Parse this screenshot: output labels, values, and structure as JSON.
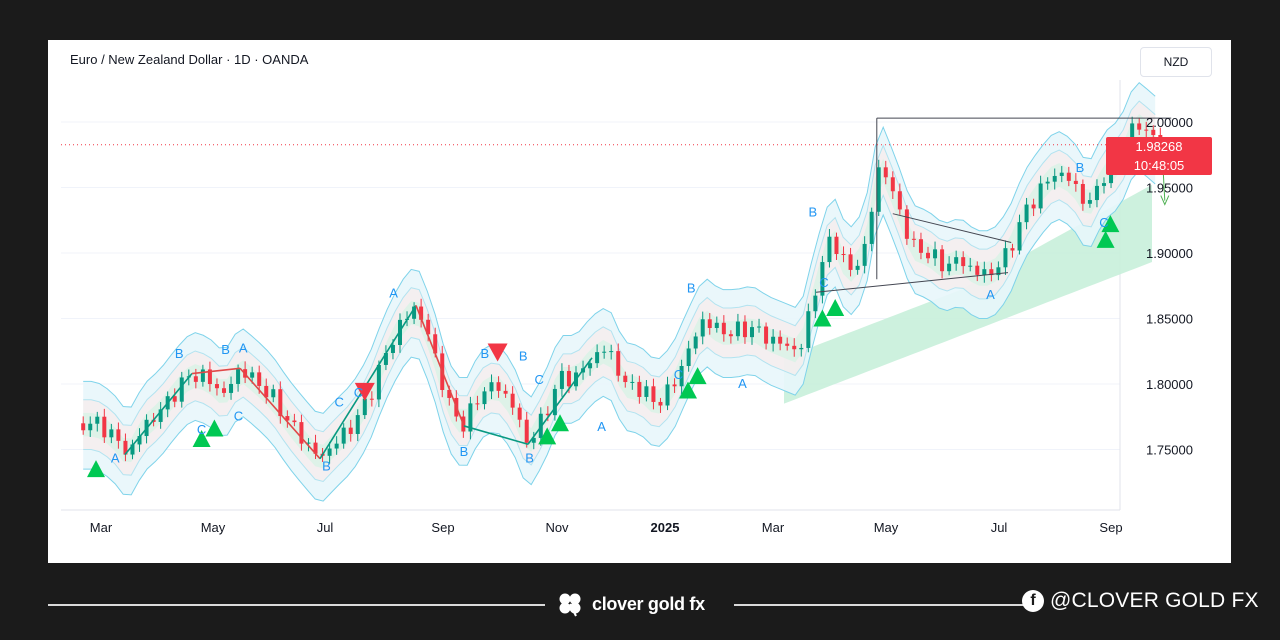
{
  "chart_data": {
    "type": "candlestick",
    "title": "Euro / New Zealand Dollar · 1D · OANDA",
    "currency": "NZD",
    "current_price": "1.98268",
    "countdown": "10:48:05",
    "y_ticks": [
      "2.00000",
      "1.95000",
      "1.90000",
      "1.85000",
      "1.80000",
      "1.75000"
    ],
    "x_ticks": [
      "Mar",
      "May",
      "Jul",
      "Sep",
      "Nov",
      "2025",
      "Mar",
      "May",
      "Jul",
      "Sep"
    ],
    "ylim": [
      1.715,
      2.02
    ],
    "close_series": [
      {
        "t": 0,
        "v": 1.77
      },
      {
        "t": 0.5,
        "v": 1.762
      },
      {
        "t": 1,
        "v": 1.746
      },
      {
        "t": 1.5,
        "v": 1.768
      },
      {
        "t": 2,
        "v": 1.779
      },
      {
        "t": 2.5,
        "v": 1.795
      },
      {
        "t": 3,
        "v": 1.808
      },
      {
        "t": 3.5,
        "v": 1.804
      },
      {
        "t": 4,
        "v": 1.792
      },
      {
        "t": 4.5,
        "v": 1.812
      },
      {
        "t": 5,
        "v": 1.802
      },
      {
        "t": 5.5,
        "v": 1.79
      },
      {
        "t": 6,
        "v": 1.772
      },
      {
        "t": 6.5,
        "v": 1.757
      },
      {
        "t": 7,
        "v": 1.743
      },
      {
        "t": 7.5,
        "v": 1.756
      },
      {
        "t": 8,
        "v": 1.768
      },
      {
        "t": 8.5,
        "v": 1.788
      },
      {
        "t": 9,
        "v": 1.82
      },
      {
        "t": 9.5,
        "v": 1.845
      },
      {
        "t": 10,
        "v": 1.86
      },
      {
        "t": 10.5,
        "v": 1.83
      },
      {
        "t": 11,
        "v": 1.785
      },
      {
        "t": 11.5,
        "v": 1.768
      },
      {
        "t": 12,
        "v": 1.793
      },
      {
        "t": 12.5,
        "v": 1.8
      },
      {
        "t": 13,
        "v": 1.785
      },
      {
        "t": 13.5,
        "v": 1.754
      },
      {
        "t": 14,
        "v": 1.775
      },
      {
        "t": 14.5,
        "v": 1.805
      },
      {
        "t": 15,
        "v": 1.805
      },
      {
        "t": 15.5,
        "v": 1.82
      },
      {
        "t": 16,
        "v": 1.828
      },
      {
        "t": 16.5,
        "v": 1.8
      },
      {
        "t": 17,
        "v": 1.797
      },
      {
        "t": 17.5,
        "v": 1.785
      },
      {
        "t": 18,
        "v": 1.797
      },
      {
        "t": 18.5,
        "v": 1.825
      },
      {
        "t": 19,
        "v": 1.85
      },
      {
        "t": 19.5,
        "v": 1.84
      },
      {
        "t": 20,
        "v": 1.84
      },
      {
        "t": 20.5,
        "v": 1.843
      },
      {
        "t": 21,
        "v": 1.835
      },
      {
        "t": 21.5,
        "v": 1.83
      },
      {
        "t": 22,
        "v": 1.825
      },
      {
        "t": 22.5,
        "v": 1.875
      },
      {
        "t": 23,
        "v": 1.915
      },
      {
        "t": 23.5,
        "v": 1.885
      },
      {
        "t": 24,
        "v": 1.9
      },
      {
        "t": 24.5,
        "v": 1.97
      },
      {
        "t": 25,
        "v": 1.94
      },
      {
        "t": 25.5,
        "v": 1.905
      },
      {
        "t": 26,
        "v": 1.9
      },
      {
        "t": 26.5,
        "v": 1.89
      },
      {
        "t": 27,
        "v": 1.895
      },
      {
        "t": 27.5,
        "v": 1.885
      },
      {
        "t": 28,
        "v": 1.885
      },
      {
        "t": 28.5,
        "v": 1.9
      },
      {
        "t": 29,
        "v": 1.93
      },
      {
        "t": 29.5,
        "v": 1.948
      },
      {
        "t": 30,
        "v": 1.962
      },
      {
        "t": 30.5,
        "v": 1.955
      },
      {
        "t": 31,
        "v": 1.935
      },
      {
        "t": 31.5,
        "v": 1.96
      },
      {
        "t": 32,
        "v": 1.97
      },
      {
        "t": 32.5,
        "v": 2.0
      },
      {
        "t": 33,
        "v": 1.99
      },
      {
        "t": 33.3,
        "v": 1.983
      }
    ],
    "annotations": {
      "labels": [
        {
          "text": "A",
          "t": 0.6,
          "price": 1.74
        },
        {
          "text": "B",
          "t": 2.6,
          "price": 1.82
        },
        {
          "text": "B",
          "t": 4.05,
          "price": 1.823
        },
        {
          "text": "A",
          "t": 4.6,
          "price": 1.824
        },
        {
          "text": "C",
          "t": 3.3,
          "price": 1.762
        },
        {
          "text": "C",
          "t": 4.45,
          "price": 1.772
        },
        {
          "text": "B",
          "t": 7.2,
          "price": 1.734
        },
        {
          "text": "C",
          "t": 7.6,
          "price": 1.783
        },
        {
          "text": "C",
          "t": 8.2,
          "price": 1.79
        },
        {
          "text": "A",
          "t": 9.3,
          "price": 1.866
        },
        {
          "text": "B",
          "t": 11.5,
          "price": 1.745
        },
        {
          "text": "B",
          "t": 12.15,
          "price": 1.82
        },
        {
          "text": "B",
          "t": 13.35,
          "price": 1.818
        },
        {
          "text": "B",
          "t": 13.55,
          "price": 1.74
        },
        {
          "text": "C",
          "t": 13.85,
          "price": 1.8
        },
        {
          "text": "A",
          "t": 15.8,
          "price": 1.764
        },
        {
          "text": "B",
          "t": 18.6,
          "price": 1.87
        },
        {
          "text": "C",
          "t": 18.2,
          "price": 1.804
        },
        {
          "text": "A",
          "t": 20.2,
          "price": 1.797
        },
        {
          "text": "B",
          "t": 22.4,
          "price": 1.928
        },
        {
          "text": "C",
          "t": 22.75,
          "price": 1.874
        },
        {
          "text": "A",
          "t": 27.95,
          "price": 1.865
        },
        {
          "text": "B",
          "t": 30.75,
          "price": 1.962
        },
        {
          "text": "C",
          "t": 31.5,
          "price": 1.92
        }
      ],
      "buy_signals": [
        {
          "t": 0,
          "price": 1.735
        },
        {
          "t": 3.3,
          "price": 1.758
        },
        {
          "t": 3.7,
          "price": 1.766
        },
        {
          "t": 14.1,
          "price": 1.76
        },
        {
          "t": 14.5,
          "price": 1.77
        },
        {
          "t": 18.5,
          "price": 1.795
        },
        {
          "t": 18.8,
          "price": 1.806
        },
        {
          "t": 22.7,
          "price": 1.85
        },
        {
          "t": 23.1,
          "price": 1.858
        },
        {
          "t": 31.55,
          "price": 1.91
        },
        {
          "t": 31.7,
          "price": 1.922
        }
      ],
      "sell_signals": [
        {
          "t": 8.4,
          "price": 1.794
        },
        {
          "t": 12.55,
          "price": 1.824
        }
      ]
    }
  },
  "footer": {
    "brand": "clover gold fx",
    "social_handle": "@CLOVER GOLD FX",
    "brand_icon": "clover-icon",
    "social_icon": "facebook-icon"
  },
  "colors": {
    "up": "#089981",
    "down": "#f23645",
    "label": "#2196f3",
    "buy_signal": "#00c853",
    "sell_signal": "#f23645"
  }
}
